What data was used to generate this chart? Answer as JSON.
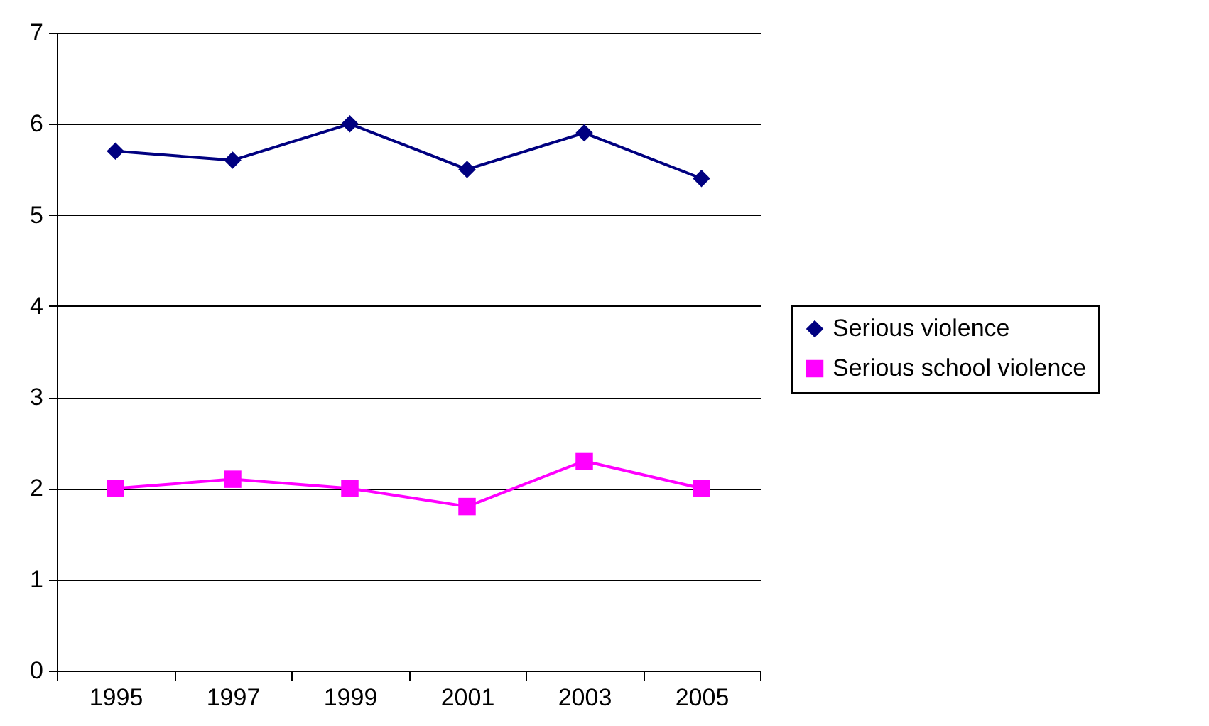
{
  "chart_data": {
    "type": "line",
    "categories": [
      "1995",
      "1997",
      "1999",
      "2001",
      "2003",
      "2005"
    ],
    "series": [
      {
        "name": "Serious violence",
        "color": "#000080",
        "marker": "diamond",
        "values": [
          5.7,
          5.6,
          6.0,
          5.5,
          5.9,
          5.4
        ]
      },
      {
        "name": "Serious school violence",
        "color": "#ff00ff",
        "marker": "square",
        "values": [
          2.0,
          2.1,
          2.0,
          1.8,
          2.3,
          2.0
        ]
      }
    ],
    "ylim": [
      0,
      7
    ],
    "yticks": [
      0,
      1,
      2,
      3,
      4,
      5,
      6,
      7
    ],
    "grid": "y",
    "legend": "right",
    "line_style": "solid"
  }
}
